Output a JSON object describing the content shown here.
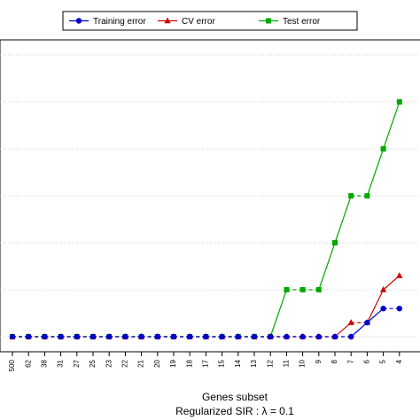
{
  "chart_data": {
    "type": "line",
    "xlabel": "Genes subset",
    "subtitle": "Regularized SIR : λ = 0.1",
    "categories": [
      "500",
      "62",
      "38",
      "31",
      "27",
      "25",
      "23",
      "22",
      "21",
      "20",
      "19",
      "18",
      "17",
      "15",
      "14",
      "13",
      "12",
      "11",
      "10",
      "9",
      "8",
      "7",
      "6",
      "5",
      "4"
    ],
    "ylim": [
      -0.02,
      0.56
    ],
    "grid": true,
    "legend_position": "top",
    "series": [
      {
        "name": "Training error",
        "color": "#0000cc",
        "marker": "circle",
        "values": [
          0,
          0,
          0,
          0,
          0,
          0,
          0,
          0,
          0,
          0,
          0,
          0,
          0,
          0,
          0,
          0,
          0,
          0,
          0,
          0,
          0,
          0,
          0.03,
          0.06,
          0.06
        ]
      },
      {
        "name": "CV error",
        "color": "#cc0000",
        "marker": "triangle",
        "values": [
          0,
          0,
          0,
          0,
          0,
          0,
          0,
          0,
          0,
          0,
          0,
          0,
          0,
          0,
          0,
          0,
          0,
          0,
          0,
          0,
          0,
          0.03,
          0.03,
          0.1,
          0.13
        ]
      },
      {
        "name": "Test error",
        "color": "#00aa00",
        "marker": "square",
        "values": [
          0,
          0,
          0,
          0,
          0,
          0,
          0,
          0,
          0,
          0,
          0,
          0,
          0,
          0,
          0,
          0,
          0,
          0.1,
          0.1,
          0.1,
          0.2,
          0.3,
          0.3,
          0.4,
          0.5
        ]
      }
    ]
  }
}
